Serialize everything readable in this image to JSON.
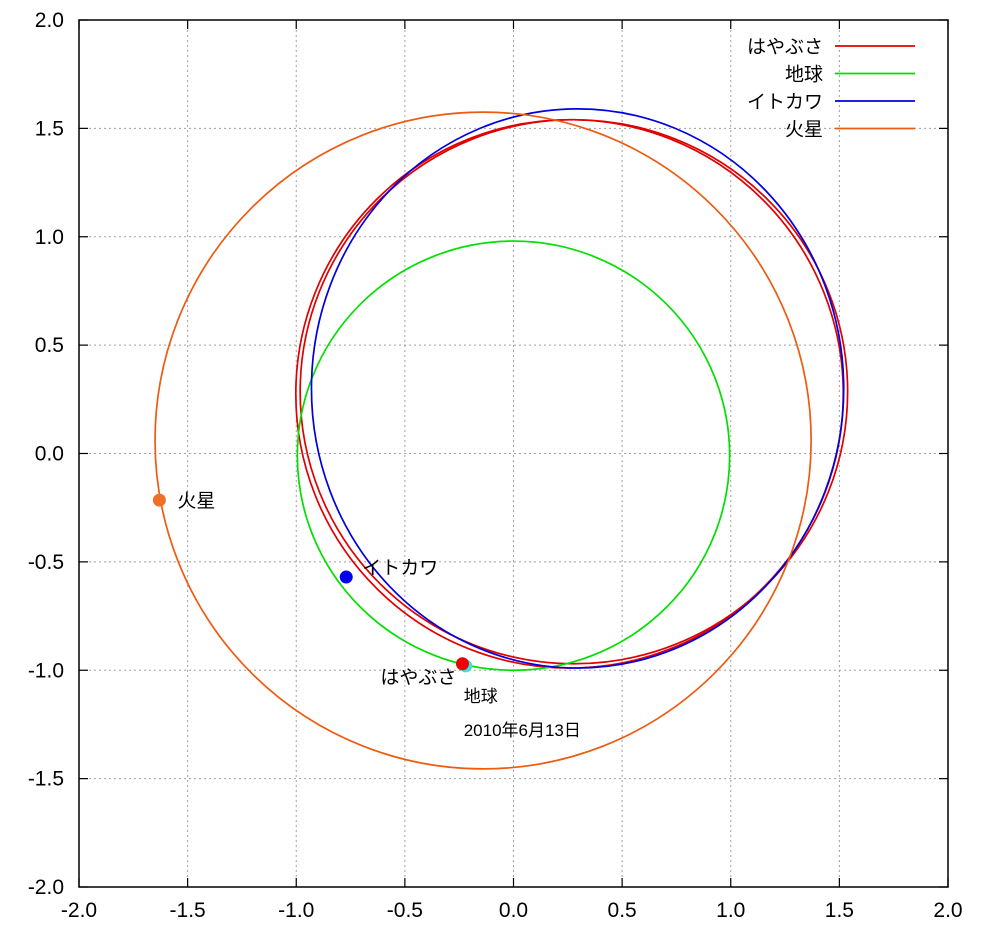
{
  "chart_data": {
    "type": "line",
    "title": "",
    "xlabel": "",
    "ylabel": "",
    "xlim": [
      -2.0,
      2.0
    ],
    "ylim": [
      -2.0,
      2.0
    ],
    "grid": true,
    "legend_position": "top-right",
    "x_ticks": [
      "-2.0",
      "-1.5",
      "-1.0",
      "-0.5",
      "0.0",
      "0.5",
      "1.0",
      "1.5",
      "2.0"
    ],
    "y_ticks": [
      "-2.0",
      "-1.5",
      "-1.0",
      "-0.5",
      "0.0",
      "0.5",
      "1.0",
      "1.5",
      "2.0"
    ],
    "series": [
      {
        "name": "はやぶさ",
        "color": "#e00000",
        "orbits": [
          {
            "center": [
              0.278,
              0.285
            ],
            "rx": 1.26,
            "ry": 1.255
          },
          {
            "center": [
              0.258,
              0.275
            ],
            "rx": 1.26,
            "ry": 1.265
          }
        ]
      },
      {
        "name": "地球",
        "color": "#00e000",
        "orbits": [
          {
            "center": [
              0.0,
              -0.01
            ],
            "rx": 0.995,
            "ry": 0.99
          }
        ]
      },
      {
        "name": "イトカワ",
        "color": "#0000e0",
        "orbits": [
          {
            "center": [
              0.295,
              0.3
            ],
            "rx": 1.225,
            "ry": 1.29
          }
        ]
      },
      {
        "name": "火星",
        "color": "#ee5a10",
        "orbits": [
          {
            "center": [
              -0.14,
              0.06
            ],
            "rx": 1.51,
            "ry": 1.515
          }
        ]
      }
    ],
    "points": [
      {
        "label": "火星",
        "x": -1.63,
        "y": -0.215,
        "color": "#f07028"
      },
      {
        "label": "イトカワ",
        "x": -0.77,
        "y": -0.57,
        "color": "#0000ee"
      },
      {
        "label": "地球",
        "x": -0.22,
        "y": -0.98,
        "color": "#40e0e0"
      },
      {
        "label": "はやぶさ",
        "x": -0.235,
        "y": -0.97,
        "color": "#ee0000"
      }
    ],
    "annotations": {
      "mars": "火星",
      "itokawa": "イトカワ",
      "hayabusa": "はやぶさ",
      "earth": "地球",
      "date": "2010年6月13日"
    }
  }
}
